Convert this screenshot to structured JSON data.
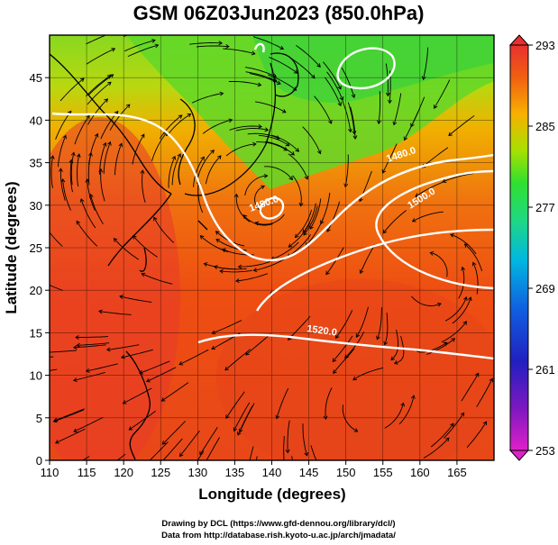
{
  "title": "GSM 06Z03Jun2023 (850.0hPa)",
  "x_axis": {
    "label": "Longitude (degrees)",
    "min": 110,
    "max": 170,
    "ticks": [
      110,
      115,
      120,
      125,
      130,
      135,
      140,
      145,
      150,
      155,
      160,
      165
    ]
  },
  "y_axis": {
    "label": "Latitude  (degrees)",
    "min": 0,
    "max": 50,
    "ticks": [
      0,
      5,
      10,
      15,
      20,
      25,
      30,
      35,
      40,
      45
    ]
  },
  "colorbar": {
    "min": 253,
    "max": 293,
    "labels": [
      293,
      285,
      277,
      269,
      261,
      253
    ],
    "palette": [
      "#e020c8",
      "#2020c0",
      "#1860e0",
      "#00b8e0",
      "#20e050",
      "#a8e000",
      "#f8b000",
      "#f05010",
      "#e83030"
    ]
  },
  "contour_labels": [
    "1480.0",
    "1520.0",
    "1500.0",
    "1480.0"
  ],
  "credits": [
    "Drawing by DCL (https://www.gfd-dennou.org/library/dcl/)",
    "Data from http://database.rish.kyoto-u.ac.jp/arch/jmadata/"
  ]
}
